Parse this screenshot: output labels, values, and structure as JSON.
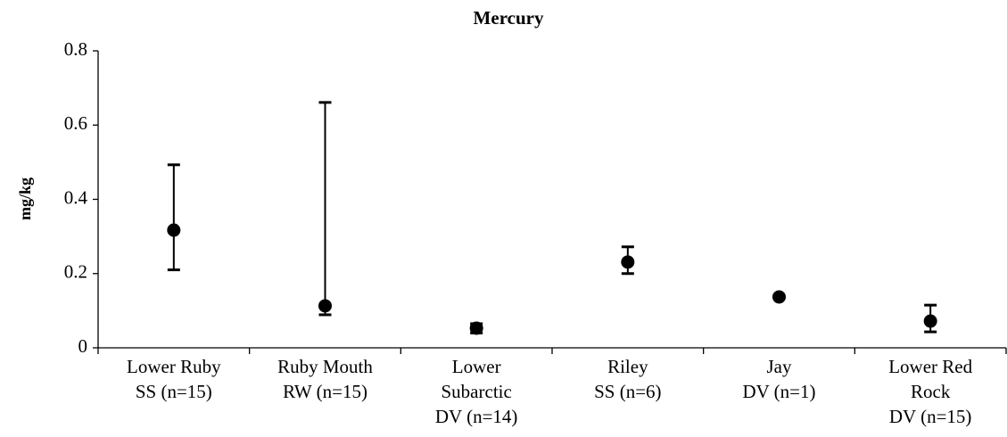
{
  "chart_data": {
    "type": "range_dot",
    "title": "Mercury",
    "y_label": "mg/kg",
    "categories": [
      [
        "Lower Ruby",
        "SS (n=15)"
      ],
      [
        "Ruby Mouth",
        "RW (n=15)"
      ],
      [
        "Lower",
        "Subarctic",
        "DV (n=14)"
      ],
      [
        "Riley",
        "SS (n=6)"
      ],
      [
        "Jay",
        "DV (n=1)"
      ],
      [
        "Lower Red",
        "Rock",
        "DV (n=15)"
      ]
    ],
    "series": [
      {
        "color": "#000000",
        "values": [
          0.317,
          0.113,
          0.053,
          0.231,
          0.137,
          0.072
        ],
        "low": [
          0.21,
          0.089,
          0.04,
          0.2,
          null,
          0.043
        ],
        "high": [
          0.493,
          0.661,
          0.065,
          0.272,
          null,
          0.115
        ]
      }
    ],
    "ylim": [
      0,
      0.8
    ],
    "yticks": [
      0,
      0.2,
      0.4,
      0.6,
      0.8
    ],
    "grid": false
  }
}
